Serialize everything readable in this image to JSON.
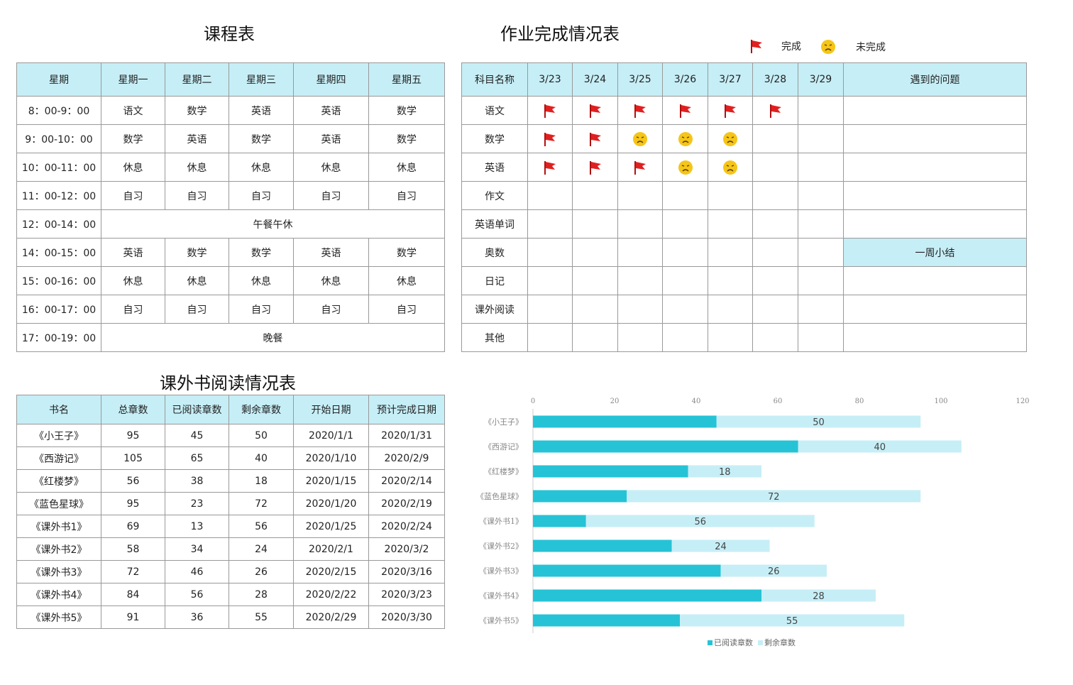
{
  "schedule": {
    "title": "课程表",
    "headers": [
      "星期",
      "星期一",
      "星期二",
      "星期三",
      "星期四",
      "星期五"
    ],
    "rows": [
      {
        "time": "8：00-9：00",
        "cells": [
          "语文",
          "数学",
          "英语",
          "英语",
          "数学"
        ]
      },
      {
        "time": "9：00-10：00",
        "cells": [
          "数学",
          "英语",
          "数学",
          "英语",
          "数学"
        ]
      },
      {
        "time": "10：00-11：00",
        "cells": [
          "休息",
          "休息",
          "休息",
          "休息",
          "休息"
        ]
      },
      {
        "time": "11：00-12：00",
        "cells": [
          "自习",
          "自习",
          "自习",
          "自习",
          "自习"
        ]
      },
      {
        "time": "12：00-14：00",
        "merged": "午餐午休"
      },
      {
        "time": "14：00-15：00",
        "cells": [
          "英语",
          "数学",
          "数学",
          "英语",
          "数学"
        ]
      },
      {
        "time": "15：00-16：00",
        "cells": [
          "休息",
          "休息",
          "休息",
          "休息",
          "休息"
        ]
      },
      {
        "time": "16：00-17：00",
        "cells": [
          "自习",
          "自习",
          "自习",
          "自习",
          "自习"
        ]
      },
      {
        "time": "17：00-19：00",
        "merged": "晚餐"
      }
    ]
  },
  "homework": {
    "title": "作业完成情况表",
    "legend": {
      "done": "完成",
      "undone": "未完成"
    },
    "headers": [
      "科目名称",
      "3/23",
      "3/24",
      "3/25",
      "3/26",
      "3/27",
      "3/28",
      "3/29",
      "遇到的问题"
    ],
    "rows": [
      {
        "subject": "语文",
        "marks": [
          "flag",
          "flag",
          "flag",
          "flag",
          "flag",
          "flag",
          ""
        ],
        "note": ""
      },
      {
        "subject": "数学",
        "marks": [
          "flag",
          "flag",
          "face",
          "face",
          "face",
          "",
          ""
        ],
        "note": ""
      },
      {
        "subject": "英语",
        "marks": [
          "flag",
          "flag",
          "flag",
          "face",
          "face",
          "",
          ""
        ],
        "note": ""
      },
      {
        "subject": "作文",
        "marks": [
          "",
          "",
          "",
          "",
          "",
          "",
          ""
        ],
        "note": ""
      },
      {
        "subject": "英语单词",
        "marks": [
          "",
          "",
          "",
          "",
          "",
          "",
          ""
        ],
        "note": ""
      },
      {
        "subject": "奥数",
        "marks": [
          "",
          "",
          "",
          "",
          "",
          "",
          ""
        ],
        "note": "一周小结",
        "highlight": true
      },
      {
        "subject": "日记",
        "marks": [
          "",
          "",
          "",
          "",
          "",
          "",
          ""
        ],
        "note": ""
      },
      {
        "subject": "课外阅读",
        "marks": [
          "",
          "",
          "",
          "",
          "",
          "",
          ""
        ],
        "note": ""
      },
      {
        "subject": "其他",
        "marks": [
          "",
          "",
          "",
          "",
          "",
          "",
          ""
        ],
        "note": ""
      }
    ]
  },
  "reading": {
    "title": "课外书阅读情况表",
    "headers": [
      "书名",
      "总章数",
      "已阅读章数",
      "剩余章数",
      "开始日期",
      "预计完成日期"
    ],
    "rows": [
      [
        "《小王子》",
        "95",
        "45",
        "50",
        "2020/1/1",
        "2020/1/31"
      ],
      [
        "《西游记》",
        "105",
        "65",
        "40",
        "2020/1/10",
        "2020/2/9"
      ],
      [
        "《红楼梦》",
        "56",
        "38",
        "18",
        "2020/1/15",
        "2020/2/14"
      ],
      [
        "《蓝色星球》",
        "95",
        "23",
        "72",
        "2020/1/20",
        "2020/2/19"
      ],
      [
        "《课外书1》",
        "69",
        "13",
        "56",
        "2020/1/25",
        "2020/2/24"
      ],
      [
        "《课外书2》",
        "58",
        "34",
        "24",
        "2020/2/1",
        "2020/3/2"
      ],
      [
        "《课外书3》",
        "72",
        "46",
        "26",
        "2020/2/15",
        "2020/3/16"
      ],
      [
        "《课外书4》",
        "84",
        "56",
        "28",
        "2020/2/22",
        "2020/3/23"
      ],
      [
        "《课外书5》",
        "91",
        "36",
        "55",
        "2020/2/29",
        "2020/3/30"
      ]
    ]
  },
  "colors": {
    "read": "#26c3d6",
    "remain": "#c6eef6",
    "header": "#c6eef6",
    "flag": "#e02020",
    "face": "#f5c518"
  },
  "chart_data": {
    "type": "bar",
    "orientation": "horizontal",
    "stacked": true,
    "categories": [
      "《小王子》",
      "《西游记》",
      "《红楼梦》",
      "《蓝色星球》",
      "《课外书1》",
      "《课外书2》",
      "《课外书3》",
      "《课外书4》",
      "《课外书5》"
    ],
    "series": [
      {
        "name": "已阅读章数",
        "values": [
          45,
          65,
          38,
          23,
          13,
          34,
          46,
          56,
          36
        ]
      },
      {
        "name": "剩余章数",
        "values": [
          50,
          40,
          18,
          72,
          56,
          24,
          26,
          28,
          55
        ]
      }
    ],
    "xticks": [
      "0",
      "20",
      "40",
      "60",
      "80",
      "100",
      "120"
    ],
    "xlim": [
      0,
      120
    ],
    "axis_position": "top",
    "legend_position": "bottom"
  }
}
